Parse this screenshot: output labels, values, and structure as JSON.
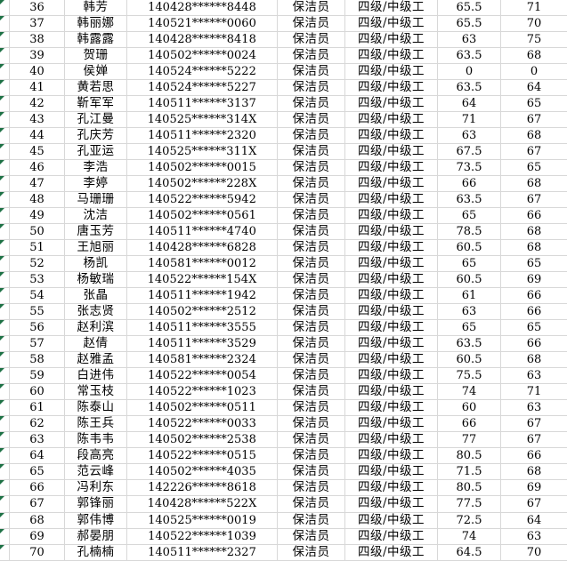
{
  "colors": {
    "cell_background": "#ffffff",
    "gridline": "#d8d8d8",
    "text": "#000000",
    "error_indicator_green": "#1e7145"
  },
  "table": {
    "position_value": "保洁员",
    "level_value": "四级/中级工",
    "rows": [
      {
        "no": "36",
        "name": "韩芳",
        "id_masked": "140428******8448",
        "position": "保洁员",
        "level": "四级/中级工",
        "score1": "65.5",
        "score2": "71"
      },
      {
        "no": "37",
        "name": "韩丽娜",
        "id_masked": "140521******0060",
        "position": "保洁员",
        "level": "四级/中级工",
        "score1": "65.5",
        "score2": "70"
      },
      {
        "no": "38",
        "name": "韩露露",
        "id_masked": "140428******8418",
        "position": "保洁员",
        "level": "四级/中级工",
        "score1": "63",
        "score2": "75"
      },
      {
        "no": "39",
        "name": "贺珊",
        "id_masked": "140502******0024",
        "position": "保洁员",
        "level": "四级/中级工",
        "score1": "63.5",
        "score2": "68"
      },
      {
        "no": "40",
        "name": "侯婵",
        "id_masked": "140524******5222",
        "position": "保洁员",
        "level": "四级/中级工",
        "score1": "0",
        "score2": "0"
      },
      {
        "no": "41",
        "name": "黄若思",
        "id_masked": "140524******5227",
        "position": "保洁员",
        "level": "四级/中级工",
        "score1": "63.5",
        "score2": "64"
      },
      {
        "no": "42",
        "name": "靳军军",
        "id_masked": "140511******3137",
        "position": "保洁员",
        "level": "四级/中级工",
        "score1": "64",
        "score2": "65"
      },
      {
        "no": "43",
        "name": "孔江曼",
        "id_masked": "140525******314X",
        "position": "保洁员",
        "level": "四级/中级工",
        "score1": "71",
        "score2": "67"
      },
      {
        "no": "44",
        "name": "孔庆芳",
        "id_masked": "140511******2320",
        "position": "保洁员",
        "level": "四级/中级工",
        "score1": "63",
        "score2": "68"
      },
      {
        "no": "45",
        "name": "孔亚运",
        "id_masked": "140525******311X",
        "position": "保洁员",
        "level": "四级/中级工",
        "score1": "67.5",
        "score2": "67"
      },
      {
        "no": "46",
        "name": "李浩",
        "id_masked": "140502******0015",
        "position": "保洁员",
        "level": "四级/中级工",
        "score1": "73.5",
        "score2": "65"
      },
      {
        "no": "47",
        "name": "李婷",
        "id_masked": "140502******228X",
        "position": "保洁员",
        "level": "四级/中级工",
        "score1": "66",
        "score2": "68"
      },
      {
        "no": "48",
        "name": "马珊珊",
        "id_masked": "140522******5942",
        "position": "保洁员",
        "level": "四级/中级工",
        "score1": "63.5",
        "score2": "67"
      },
      {
        "no": "49",
        "name": "沈洁",
        "id_masked": "140502******0561",
        "position": "保洁员",
        "level": "四级/中级工",
        "score1": "65",
        "score2": "66"
      },
      {
        "no": "50",
        "name": "唐玉芳",
        "id_masked": "140511******4740",
        "position": "保洁员",
        "level": "四级/中级工",
        "score1": "78.5",
        "score2": "68"
      },
      {
        "no": "51",
        "name": "王旭丽",
        "id_masked": "140428******6828",
        "position": "保洁员",
        "level": "四级/中级工",
        "score1": "60.5",
        "score2": "68"
      },
      {
        "no": "52",
        "name": "杨凯",
        "id_masked": "140581******0012",
        "position": "保洁员",
        "level": "四级/中级工",
        "score1": "65",
        "score2": "65"
      },
      {
        "no": "53",
        "name": "杨敏瑞",
        "id_masked": "140522******154X",
        "position": "保洁员",
        "level": "四级/中级工",
        "score1": "60.5",
        "score2": "69"
      },
      {
        "no": "54",
        "name": "张晶",
        "id_masked": "140511******1942",
        "position": "保洁员",
        "level": "四级/中级工",
        "score1": "61",
        "score2": "66"
      },
      {
        "no": "55",
        "name": "张志贤",
        "id_masked": "140502******2512",
        "position": "保洁员",
        "level": "四级/中级工",
        "score1": "63",
        "score2": "66"
      },
      {
        "no": "56",
        "name": "赵利滨",
        "id_masked": "140511******3555",
        "position": "保洁员",
        "level": "四级/中级工",
        "score1": "65",
        "score2": "65"
      },
      {
        "no": "57",
        "name": "赵倩",
        "id_masked": "140511******3529",
        "position": "保洁员",
        "level": "四级/中级工",
        "score1": "63.5",
        "score2": "66"
      },
      {
        "no": "58",
        "name": "赵雅孟",
        "id_masked": "140581******2324",
        "position": "保洁员",
        "level": "四级/中级工",
        "score1": "60.5",
        "score2": "68"
      },
      {
        "no": "59",
        "name": "白进伟",
        "id_masked": "140522******0054",
        "position": "保洁员",
        "level": "四级/中级工",
        "score1": "75.5",
        "score2": "63"
      },
      {
        "no": "60",
        "name": "常玉枝",
        "id_masked": "140522******1023",
        "position": "保洁员",
        "level": "四级/中级工",
        "score1": "74",
        "score2": "71"
      },
      {
        "no": "61",
        "name": "陈泰山",
        "id_masked": "140502******0511",
        "position": "保洁员",
        "level": "四级/中级工",
        "score1": "60",
        "score2": "63"
      },
      {
        "no": "62",
        "name": "陈王兵",
        "id_masked": "140522******0033",
        "position": "保洁员",
        "level": "四级/中级工",
        "score1": "66",
        "score2": "67"
      },
      {
        "no": "63",
        "name": "陈韦韦",
        "id_masked": "140502******2538",
        "position": "保洁员",
        "level": "四级/中级工",
        "score1": "77",
        "score2": "67"
      },
      {
        "no": "64",
        "name": "段高亮",
        "id_masked": "140522******0515",
        "position": "保洁员",
        "level": "四级/中级工",
        "score1": "80.5",
        "score2": "66"
      },
      {
        "no": "65",
        "name": "范云峰",
        "id_masked": "140502******4035",
        "position": "保洁员",
        "level": "四级/中级工",
        "score1": "71.5",
        "score2": "68"
      },
      {
        "no": "66",
        "name": "冯利东",
        "id_masked": "142226******8618",
        "position": "保洁员",
        "level": "四级/中级工",
        "score1": "80.5",
        "score2": "69"
      },
      {
        "no": "67",
        "name": "郭锋丽",
        "id_masked": "140428******522X",
        "position": "保洁员",
        "level": "四级/中级工",
        "score1": "77.5",
        "score2": "67"
      },
      {
        "no": "68",
        "name": "郭伟博",
        "id_masked": "140525******0019",
        "position": "保洁员",
        "level": "四级/中级工",
        "score1": "72.5",
        "score2": "64"
      },
      {
        "no": "69",
        "name": "郝晏朋",
        "id_masked": "140522******1039",
        "position": "保洁员",
        "level": "四级/中级工",
        "score1": "74",
        "score2": "63"
      },
      {
        "no": "70",
        "name": "孔楠楠",
        "id_masked": "140511******2327",
        "position": "保洁员",
        "level": "四级/中级工",
        "score1": "64.5",
        "score2": "70"
      }
    ]
  }
}
